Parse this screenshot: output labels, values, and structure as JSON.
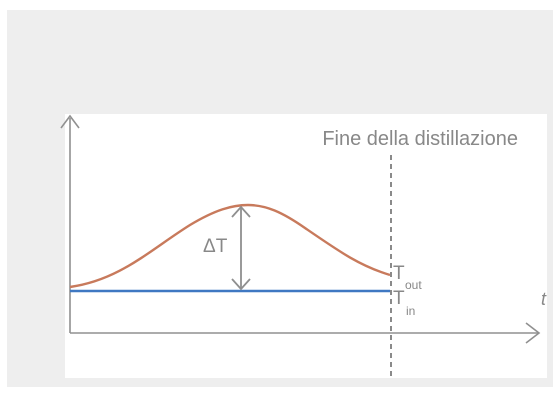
{
  "diagram": {
    "annotation": "Fine della distillazione",
    "delta_label": "ΔT",
    "t_out": {
      "base": "T",
      "subscript": "out"
    },
    "t_in": {
      "base": "T",
      "subscript": "in"
    },
    "x_axis_label": "t"
  },
  "colors": {
    "frame_bg": "#eeeeee",
    "axis": "#909090",
    "outlet_curve": "#c87a5c",
    "inlet_line": "#3f78c2",
    "arrow": "#8f8f8f",
    "end_marker": "#8a8a8a",
    "text": "#888888"
  }
}
